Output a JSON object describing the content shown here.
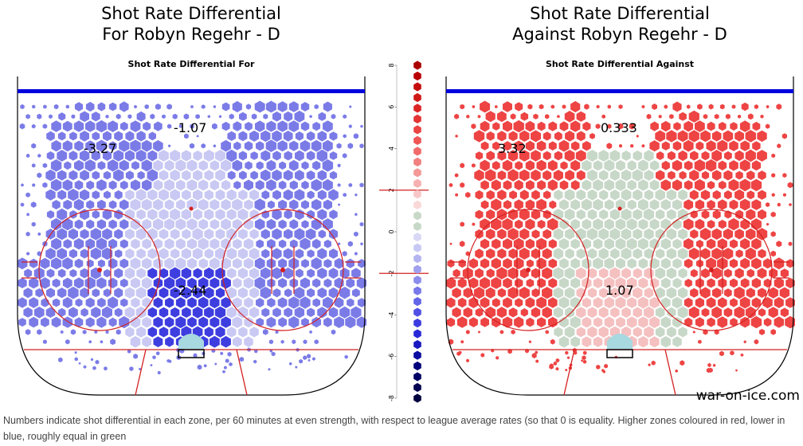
{
  "titles": {
    "left_line1": "Shot Rate Differential",
    "left_line2": "For Robyn Regehr - D",
    "right_line1": "Shot Rate Differential",
    "right_line2": "Against Robyn Regehr - D",
    "left_sub": "Shot Rate Differential For",
    "right_sub": "Shot Rate Differential Against"
  },
  "brand": "war-on-ice.com",
  "caption": "Numbers indicate shot differential in each zone, per 60 minutes at even strength, with respect to league average rates (so that 0 is equality. Higher zones coloured in red, lower in blue, roughly equal in green",
  "colors": {
    "rink_line": "#d42020",
    "blue_line": "#0000dd",
    "crease": "#a8d8e0",
    "for_base": "#7b7be8",
    "for_light": "#c9c9f4",
    "for_dark": "#3e3ee0",
    "against_base": "#ee4444",
    "against_green": "#c8d8c8",
    "against_pink": "#f5c0c0"
  },
  "chart_data": [
    {
      "type": "heatmap",
      "title": "Shot Rate Differential For",
      "zones": [
        {
          "label": "-3.27",
          "value": -3.27,
          "color": "#7b7be8"
        },
        {
          "label": "-1.07",
          "value": -1.07,
          "color": "#c9c9f4"
        },
        {
          "label": "-2.44",
          "value": -2.44,
          "color": "#3e3ee0"
        }
      ]
    },
    {
      "type": "heatmap",
      "title": "Shot Rate Differential Against",
      "zones": [
        {
          "label": "3.32",
          "value": 3.32,
          "color": "#ee4444"
        },
        {
          "label": "0.333",
          "value": 0.333,
          "color": "#c8d8c8"
        },
        {
          "label": "1.07",
          "value": 1.07,
          "color": "#f5c0c0"
        }
      ]
    },
    {
      "type": "scatter",
      "title": "",
      "role": "color legend",
      "ylim": [
        -8,
        8
      ],
      "y_ticks": [
        "8",
        "6",
        "4",
        "2",
        "0",
        "-2",
        "-4",
        "-6",
        "-8"
      ],
      "reference_lines": [
        2,
        -2
      ],
      "colors": [
        "#aa0000",
        "#b80000",
        "#c40c0c",
        "#d01818",
        "#dc2626",
        "#e43434",
        "#ea4444",
        "#ee5656",
        "#f06a6a",
        "#f28080",
        "#f49898",
        "#f6b0b0",
        "#f8c8c8",
        "#f8d8d8",
        "#c8d8c8",
        "#c8d8c8",
        "#d8d8f4",
        "#c8c8f4",
        "#b4b4f0",
        "#a0a0ee",
        "#8c8cec",
        "#7878ea",
        "#6464e8",
        "#5050e4",
        "#3c3ce0",
        "#2828d8",
        "#1818c0",
        "#0c0ca0",
        "#00007c",
        "#000064",
        "#000050",
        "#000040"
      ]
    }
  ]
}
